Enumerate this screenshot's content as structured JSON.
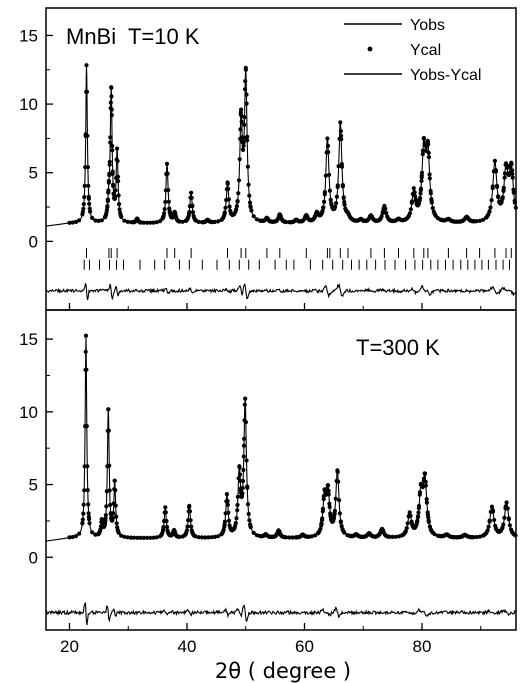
{
  "chart_data": {
    "type": "line",
    "title": "",
    "xlabel": "2θ ( degree )",
    "ylabel": "",
    "xlim": [
      16,
      96
    ],
    "x_ticks": [
      20,
      40,
      60,
      80
    ],
    "grid": false,
    "panels": [
      {
        "label": "MnBi  T=10 K",
        "ylim": [
          -5,
          17
        ],
        "y_ticks": [
          15,
          10,
          5,
          0
        ],
        "baseline": 1.3,
        "diff_offset": -3.6,
        "peaks": [
          {
            "x": 22.9,
            "y": 12.8
          },
          {
            "x": 26.7,
            "y": 2.6
          },
          {
            "x": 27.1,
            "y": 10.8
          },
          {
            "x": 28.1,
            "y": 6.4
          },
          {
            "x": 31.5,
            "y": 1.6
          },
          {
            "x": 36.6,
            "y": 5.6
          },
          {
            "x": 37.9,
            "y": 2.0
          },
          {
            "x": 40.7,
            "y": 3.5
          },
          {
            "x": 43.5,
            "y": 1.5
          },
          {
            "x": 46.9,
            "y": 4.1
          },
          {
            "x": 49.2,
            "y": 8.5
          },
          {
            "x": 50.0,
            "y": 11.9
          },
          {
            "x": 53.6,
            "y": 1.6
          },
          {
            "x": 55.8,
            "y": 1.9
          },
          {
            "x": 58.6,
            "y": 1.5
          },
          {
            "x": 60.3,
            "y": 1.8
          },
          {
            "x": 62.1,
            "y": 1.9
          },
          {
            "x": 63.9,
            "y": 7.3
          },
          {
            "x": 66.1,
            "y": 8.5
          },
          {
            "x": 67.4,
            "y": 1.6
          },
          {
            "x": 69.6,
            "y": 1.5
          },
          {
            "x": 71.3,
            "y": 1.8
          },
          {
            "x": 73.6,
            "y": 2.5
          },
          {
            "x": 76.0,
            "y": 1.5
          },
          {
            "x": 78.6,
            "y": 3.5
          },
          {
            "x": 80.3,
            "y": 6.3
          },
          {
            "x": 81.0,
            "y": 6.1
          },
          {
            "x": 84.5,
            "y": 1.5
          },
          {
            "x": 87.6,
            "y": 1.7
          },
          {
            "x": 92.4,
            "y": 5.6
          },
          {
            "x": 94.3,
            "y": 4.8
          },
          {
            "x": 95.2,
            "y": 5.0
          }
        ],
        "tick_rows": [
          {
            "y": -0.85,
            "x": [
              22.9,
              26.7,
              27.1,
              28.1,
              36.6,
              37.9,
              40.7,
              46.9,
              49.2,
              50.0,
              53.6,
              55.8,
              60.3,
              63.9,
              64.3,
              66.1,
              67.4,
              71.3,
              73.6,
              76.0,
              78.6,
              80.3,
              81.0,
              84.5,
              87.6,
              89.8,
              92.4,
              94.3,
              95.2
            ]
          },
          {
            "y": -1.7,
            "x": [
              22.5,
              23.4,
              25.1,
              26.8,
              28.0,
              29.2,
              32.0,
              34.5,
              36.2,
              38.7,
              40.4,
              42.6,
              45.1,
              47.2,
              48.9,
              50.5,
              52.3,
              55.0,
              56.9,
              58.2,
              61.0,
              63.1,
              64.8,
              66.5,
              68.0,
              69.3,
              70.6,
              72.1,
              73.7,
              75.4,
              77.2,
              78.8,
              80.1,
              81.5,
              82.7,
              84.0,
              85.3,
              86.6,
              87.8,
              89.0,
              90.2,
              91.3,
              92.6,
              93.8,
              94.9
            ]
          }
        ],
        "legend": [
          {
            "label": "Yobs",
            "kind": "line"
          },
          {
            "label": "Ycal",
            "kind": "dot"
          },
          {
            "label": "Yobs-Ycal",
            "kind": "line"
          }
        ]
      },
      {
        "label": "T=300 K",
        "ylim": [
          -5,
          17
        ],
        "y_ticks": [
          15,
          10,
          5,
          0
        ],
        "baseline": 1.3,
        "diff_offset": -3.8,
        "peaks": [
          {
            "x": 22.8,
            "y": 15.2
          },
          {
            "x": 25.5,
            "y": 2.3
          },
          {
            "x": 26.6,
            "y": 10.0
          },
          {
            "x": 27.7,
            "y": 5.0
          },
          {
            "x": 36.3,
            "y": 3.4
          },
          {
            "x": 37.8,
            "y": 1.8
          },
          {
            "x": 40.4,
            "y": 3.5
          },
          {
            "x": 46.8,
            "y": 4.2
          },
          {
            "x": 48.9,
            "y": 5.6
          },
          {
            "x": 49.9,
            "y": 10.6
          },
          {
            "x": 53.4,
            "y": 1.5
          },
          {
            "x": 55.6,
            "y": 1.8
          },
          {
            "x": 59.7,
            "y": 1.5
          },
          {
            "x": 63.4,
            "y": 3.9
          },
          {
            "x": 64.0,
            "y": 4.2
          },
          {
            "x": 65.6,
            "y": 5.8
          },
          {
            "x": 68.8,
            "y": 1.5
          },
          {
            "x": 71.0,
            "y": 1.6
          },
          {
            "x": 73.2,
            "y": 1.9
          },
          {
            "x": 77.9,
            "y": 2.9
          },
          {
            "x": 79.8,
            "y": 4.1
          },
          {
            "x": 80.5,
            "y": 5.1
          },
          {
            "x": 84.2,
            "y": 1.5
          },
          {
            "x": 87.3,
            "y": 1.5
          },
          {
            "x": 91.9,
            "y": 3.4
          },
          {
            "x": 94.4,
            "y": 3.7
          }
        ],
        "tick_rows": [],
        "legend": []
      }
    ]
  }
}
